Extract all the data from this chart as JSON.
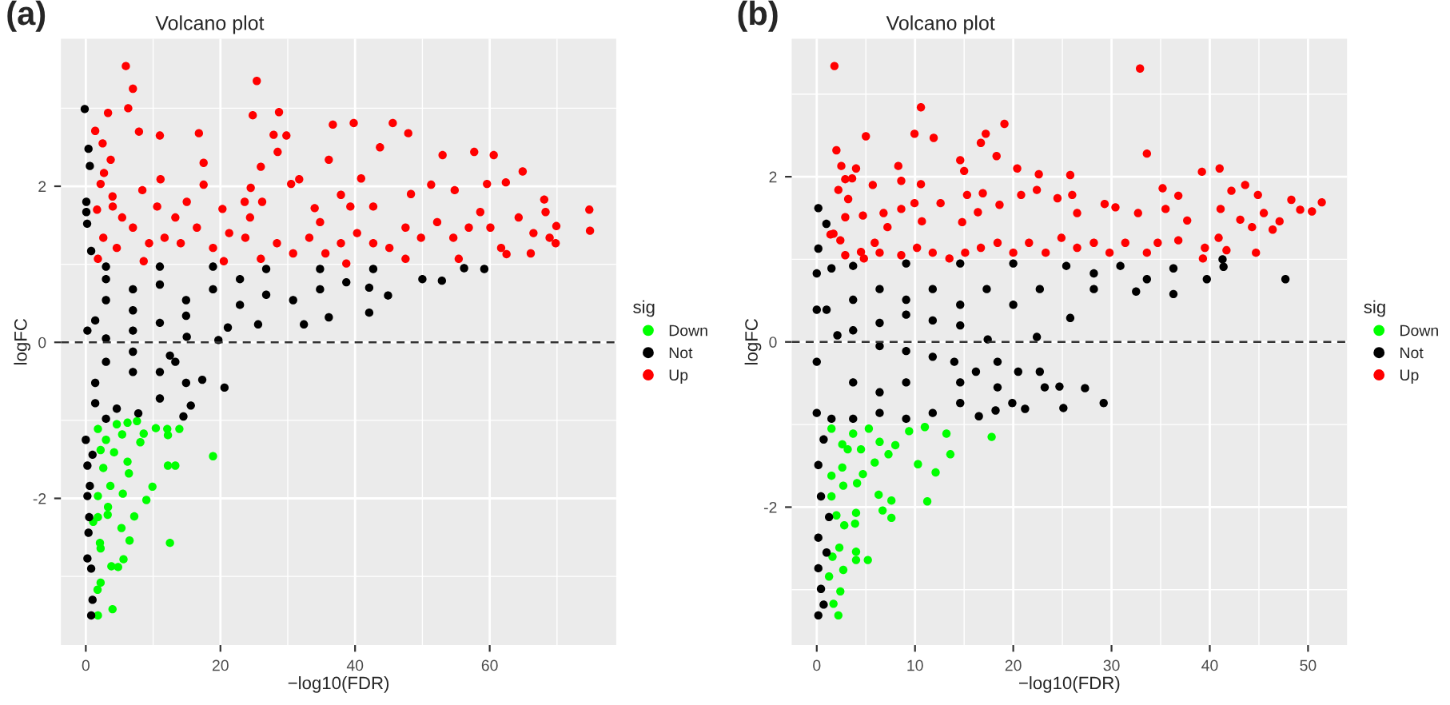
{
  "chart_data": [
    {
      "type": "scatter",
      "title": "Volcano plot",
      "annotations": [
        "(a)"
      ],
      "xlabel": "−log10(FDR)",
      "ylabel": "logFC",
      "legend_title": "sig",
      "legend": "right",
      "grid": true,
      "marker": "circle",
      "xlim": [
        -3.7,
        78.8
      ],
      "ylim": [
        -3.88,
        3.89
      ],
      "xticks": [
        0,
        20,
        40,
        60
      ],
      "yticks": [
        -2,
        0,
        2
      ],
      "ref_lines": [
        {
          "axis": "y",
          "value": 0,
          "line_style": "dashed",
          "color": "#333333"
        }
      ],
      "series": [
        {
          "name": "Down",
          "color": "#00ff00",
          "x": [
            1.8,
            3.97,
            2.2,
            1.75,
            3.8,
            5.6,
            4.8,
            6.5,
            12.5,
            5.3,
            7.2,
            2.1,
            1.8,
            3.25,
            3.3,
            9.0,
            9.9,
            5.5,
            3.65,
            6.4,
            6.2,
            12.2,
            13.3,
            18.9,
            8.1,
            8.6,
            10.4,
            12.1,
            13.9,
            12.2,
            7.6,
            6.2,
            4.6,
            3.0,
            2.2,
            1.8,
            4.2,
            5.4,
            2.6,
            1.8,
            1.1,
            2.2
          ],
          "values": [
            -3.5,
            -3.42,
            -3.08,
            -3.17,
            -2.87,
            -2.78,
            -2.88,
            -2.54,
            -2.57,
            -2.38,
            -2.23,
            -2.57,
            -2.24,
            -2.21,
            -2.11,
            -2.02,
            -1.85,
            -1.94,
            -1.84,
            -1.68,
            -1.53,
            -1.58,
            -1.58,
            -1.46,
            -1.28,
            -1.17,
            -1.1,
            -1.11,
            -1.11,
            -1.19,
            -1.01,
            -1.03,
            -1.05,
            -1.25,
            -1.38,
            -1.11,
            -1.41,
            -1.18,
            -1.61,
            -1.97,
            -2.3,
            -2.64
          ]
        },
        {
          "name": "Not",
          "color": "#000000",
          "x": [
            -0.16,
            0.4,
            0.6,
            0.08,
            0.08,
            0.2,
            0.8,
            59.2,
            56.2,
            52.9,
            50.0,
            44.9,
            42.1,
            42.1,
            36.1,
            32.4,
            25.6,
            21.1,
            19.7,
            15.0,
            42.7,
            34.8,
            26.8,
            18.9,
            11.0,
            3.0,
            30.8,
            22.9,
            14.9,
            11.0,
            7.0,
            3.0,
            7,
            11,
            18.9,
            26.8,
            34.8,
            14.9,
            7.0,
            3.0,
            1.4,
            0.24,
            3,
            38.7,
            22.9,
            12.5,
            13.3,
            14.9,
            17.3,
            20.6,
            15.6,
            14.5,
            11.0,
            7.8,
            4.6,
            3.0,
            1.4,
            7.0,
            11,
            3.0,
            7,
            1.4,
            0.24,
            0.24,
            0.5,
            0.24,
            0.8,
            1.0,
            0.8,
            0,
            0.4,
            0.6,
            1.0
          ],
          "values": [
            2.99,
            2.48,
            2.26,
            1.8,
            1.67,
            1.52,
            1.17,
            0.94,
            0.95,
            0.79,
            0.81,
            0.6,
            0.7,
            0.38,
            0.32,
            0.23,
            0.23,
            0.19,
            0.03,
            0.07,
            0.94,
            0.94,
            0.94,
            0.97,
            0.97,
            0.97,
            0.54,
            0.48,
            0.34,
            0.25,
            0.15,
            0.05,
            0.68,
            0.74,
            0.68,
            0.61,
            0.68,
            0.54,
            0.41,
            0.54,
            0.28,
            0.15,
            0.81,
            0.77,
            0.81,
            -0.17,
            -0.25,
            -0.52,
            -0.48,
            -0.58,
            -0.81,
            -0.95,
            -0.72,
            -0.91,
            -0.85,
            -0.98,
            -0.78,
            -0.38,
            -0.38,
            -0.25,
            -0.12,
            -0.52,
            -1.58,
            -1.97,
            -2.24,
            -2.77,
            -2.9,
            -3.3,
            -3.5,
            -1.25,
            -2.44,
            -1.84,
            -1.44
          ]
        },
        {
          "name": "Up",
          "color": "#ff0000",
          "x": [
            5.95,
            7.0,
            6.3,
            25.4,
            1.4,
            3.3,
            7.9,
            11.0,
            16.8,
            24.8,
            28.7,
            27.9,
            29.8,
            36.7,
            39.8,
            45.6,
            43.7,
            47.9,
            28.5,
            26.0,
            17.5,
            3.7,
            2.7,
            2.5,
            2.2,
            11.1,
            17.5,
            36.1,
            53.0,
            57.7,
            60.6,
            64.9,
            40.9,
            31.7,
            8.4,
            15.0,
            24.5,
            30.5,
            3.97,
            4.0,
            1.67,
            10.6,
            20.3,
            23.6,
            26.2,
            34.0,
            37.9,
            39.3,
            42.7,
            48.3,
            51.3,
            54.8,
            59.6,
            62.4,
            68.1,
            68.3,
            74.8,
            74.9,
            69.9,
            69.8,
            66.1,
            64.3,
            62.5,
            60.1,
            56.9,
            54.6,
            52.2,
            49.8,
            47.5,
            45.1,
            42.7,
            40.3,
            37.9,
            35.6,
            33.2,
            30.8,
            28.4,
            26.0,
            23.7,
            21.3,
            18.9,
            16.5,
            14.1,
            11.7,
            9.4,
            7.0,
            4.6,
            2.6,
            1.8,
            5.4,
            13.3,
            24.4,
            34.8,
            47.5,
            55.4,
            61.7,
            58.6,
            66.5,
            68.9,
            38.7,
            20.5,
            8.6
          ],
          "values": [
            3.54,
            3.25,
            3.0,
            3.35,
            2.71,
            2.94,
            2.7,
            2.65,
            2.68,
            2.91,
            2.95,
            2.66,
            2.65,
            2.79,
            2.81,
            2.81,
            2.5,
            2.68,
            2.44,
            2.25,
            2.3,
            2.34,
            2.17,
            2.55,
            2.03,
            2.09,
            2.02,
            2.34,
            2.4,
            2.44,
            2.4,
            2.19,
            2.1,
            2.09,
            1.95,
            1.8,
            1.98,
            2.03,
            1.87,
            1.74,
            1.7,
            1.74,
            1.71,
            1.8,
            1.8,
            1.72,
            1.89,
            1.74,
            1.74,
            1.9,
            2.02,
            1.95,
            2.03,
            2.05,
            1.83,
            1.67,
            1.7,
            1.43,
            1.49,
            1.27,
            1.14,
            1.6,
            1.13,
            1.47,
            1.47,
            1.34,
            1.54,
            1.34,
            1.47,
            1.21,
            1.27,
            1.4,
            1.27,
            1.14,
            1.34,
            1.14,
            1.27,
            1.07,
            1.34,
            1.4,
            1.21,
            1.47,
            1.27,
            1.34,
            1.27,
            1.47,
            1.21,
            1.34,
            1.07,
            1.6,
            1.6,
            1.6,
            1.54,
            1.07,
            1.07,
            1.21,
            1.67,
            1.4,
            1.34,
            1.01,
            1.04,
            1.04
          ]
        }
      ]
    },
    {
      "type": "scatter",
      "title": "Volcano plot",
      "annotations": [
        "(b)"
      ],
      "xlabel": "−log10(FDR)",
      "ylabel": "logFC",
      "legend_title": "sig",
      "legend": "right",
      "grid": true,
      "marker": "circle",
      "xlim": [
        -2.55,
        53.97
      ],
      "ylim": [
        -3.67,
        3.67
      ],
      "xticks": [
        0,
        10,
        20,
        30,
        40,
        50
      ],
      "yticks": [
        -2,
        0,
        2
      ],
      "ref_lines": [
        {
          "axis": "y",
          "value": 0,
          "line_style": "dashed",
          "color": "#333333"
        }
      ],
      "series": [
        {
          "name": "Down",
          "color": "#00ff00",
          "x": [
            2.2,
            1.7,
            2.4,
            2.7,
            1.25,
            1.6,
            2.3,
            4.0,
            4.0,
            5.2,
            2.0,
            2.8,
            4.0,
            3.9,
            6.3,
            6.7,
            7.6,
            7.6,
            11.25,
            1.5,
            2.7,
            1.5,
            2.6,
            4.1,
            4.7,
            5.9,
            7.3,
            10.3,
            12.1,
            13.6,
            13.2,
            17.8,
            11.0,
            9.4,
            8.0,
            6.4,
            5.3,
            3.7,
            2.6,
            1.5,
            3.15,
            4.5
          ],
          "values": [
            -3.31,
            -3.17,
            -3.02,
            -2.76,
            -2.84,
            -2.6,
            -2.49,
            -2.54,
            -2.64,
            -2.64,
            -2.1,
            -2.22,
            -2.07,
            -2.2,
            -1.85,
            -2.04,
            -2.13,
            -1.92,
            -1.93,
            -1.87,
            -1.74,
            -1.62,
            -1.52,
            -1.71,
            -1.6,
            -1.46,
            -1.36,
            -1.48,
            -1.58,
            -1.36,
            -1.11,
            -1.15,
            -1.03,
            -1.08,
            -1.25,
            -1.21,
            -1.05,
            -1.11,
            -1.24,
            -1.05,
            -1.3,
            -1.3
          ]
        },
        {
          "name": "Not",
          "color": "#000000",
          "x": [
            0.16,
            0.98,
            0.16,
            0,
            0,
            0,
            0,
            47.7,
            41.3,
            41.4,
            39.7,
            36.3,
            32.5,
            28.2,
            25.8,
            22.4,
            17.4,
            14.6,
            11.8,
            9.1,
            6.4,
            3.7,
            2.1,
            36.3,
            30.9,
            25.4,
            20.0,
            14.6,
            9.1,
            3.7,
            1.5,
            6.4,
            11.8,
            17.3,
            22.7,
            14.6,
            20.0,
            9.1,
            3.7,
            1.0,
            28.2,
            33.6,
            29.2,
            27.3,
            25.1,
            24.7,
            23.2,
            21.2,
            19.9,
            18.2,
            16.5,
            22.7,
            20.5,
            18.4,
            16.2,
            14.0,
            11.8,
            9.1,
            6.4,
            14.6,
            11.8,
            9.1,
            6.4,
            3.7,
            1.5,
            14.6,
            9.1,
            3.7,
            6.4,
            18.4,
            0.16,
            0.43,
            0.16,
            0.16,
            0.43,
            0.16,
            0.7,
            1.0,
            1.25,
            0.7
          ],
          "values": [
            1.62,
            1.43,
            1.13,
            0.83,
            0.39,
            -0.24,
            -0.86,
            0.76,
            1.0,
            0.91,
            0.76,
            0.58,
            0.61,
            0.64,
            0.29,
            0.06,
            0.03,
            0.2,
            0.26,
            0.33,
            0.23,
            0.14,
            0.08,
            0.89,
            0.92,
            0.92,
            0.95,
            0.95,
            0.95,
            0.92,
            0.89,
            0.64,
            0.64,
            0.64,
            0.64,
            0.45,
            0.45,
            0.51,
            0.51,
            0.39,
            0.83,
            0.76,
            -0.74,
            -0.56,
            -0.8,
            -0.54,
            -0.55,
            -0.81,
            -0.74,
            -0.83,
            -0.9,
            -0.36,
            -0.36,
            -0.24,
            -0.36,
            -0.24,
            -0.18,
            -0.11,
            -0.05,
            -0.74,
            -0.86,
            -0.93,
            -0.86,
            -0.93,
            -0.93,
            -0.49,
            -0.49,
            -0.49,
            -0.61,
            -0.55,
            -1.49,
            -1.87,
            -2.37,
            -2.74,
            -2.99,
            -3.31,
            -3.18,
            -2.55,
            -2.12,
            -1.18
          ]
        },
        {
          "name": "Up",
          "color": "#ff0000",
          "x": [
            1.8,
            32.9,
            10.6,
            19.1,
            5.0,
            9.95,
            11.9,
            17.2,
            16.7,
            2.0,
            18.3,
            33.6,
            2.5,
            4.0,
            8.3,
            14.6,
            15.0,
            20.4,
            22.6,
            25.8,
            39.2,
            41.0,
            2.9,
            3.6,
            5.7,
            8.6,
            10.6,
            2.2,
            3.2,
            2.9,
            4.7,
            1.4,
            2.4,
            2.9,
            4.5,
            5.9,
            6.8,
            7.2,
            8.6,
            9.95,
            10.7,
            12.6,
            14.8,
            15.3,
            16.9,
            16.4,
            18.6,
            20.8,
            22.4,
            24.5,
            26.5,
            29.3,
            30.4,
            32.7,
            26.0,
            35.2,
            35.5,
            36.8,
            37.7,
            41.1,
            42.2,
            43.6,
            43.1,
            44.9,
            45.5,
            48.3,
            49.2,
            50.4,
            51.4,
            47.1,
            46.4,
            44.7,
            44.3,
            40.9,
            41.7,
            39.5,
            39.3,
            36.8,
            34.7,
            33.6,
            31.4,
            29.8,
            28.2,
            26.5,
            24.9,
            23.3,
            21.6,
            20.0,
            18.4,
            16.7,
            15.1,
            13.5,
            11.8,
            10.2,
            8.6,
            6.4,
            4.8,
            1.7
          ],
          "values": [
            3.34,
            3.31,
            2.84,
            2.64,
            2.49,
            2.52,
            2.47,
            2.52,
            2.41,
            2.32,
            2.25,
            2.28,
            2.13,
            2.1,
            2.13,
            2.2,
            2.07,
            2.1,
            2.03,
            2.02,
            2.06,
            2.1,
            1.97,
            1.98,
            1.9,
            1.95,
            1.91,
            1.84,
            1.73,
            1.51,
            1.53,
            1.3,
            1.23,
            1.05,
            1.09,
            1.2,
            1.56,
            1.39,
            1.61,
            1.68,
            1.46,
            1.68,
            1.45,
            1.78,
            1.8,
            1.57,
            1.66,
            1.78,
            1.84,
            1.74,
            1.56,
            1.67,
            1.63,
            1.56,
            1.78,
            1.86,
            1.61,
            1.77,
            1.47,
            1.61,
            1.83,
            1.9,
            1.48,
            1.78,
            1.56,
            1.72,
            1.6,
            1.58,
            1.69,
            1.46,
            1.36,
            1.08,
            1.39,
            1.26,
            1.11,
            1.14,
            1.01,
            1.23,
            1.2,
            1.08,
            1.2,
            1.08,
            1.2,
            1.14,
            1.26,
            1.08,
            1.2,
            1.08,
            1.2,
            1.14,
            1.08,
            1.01,
            1.08,
            1.14,
            1.05,
            1.08,
            1.01,
            1.31
          ]
        }
      ]
    }
  ]
}
